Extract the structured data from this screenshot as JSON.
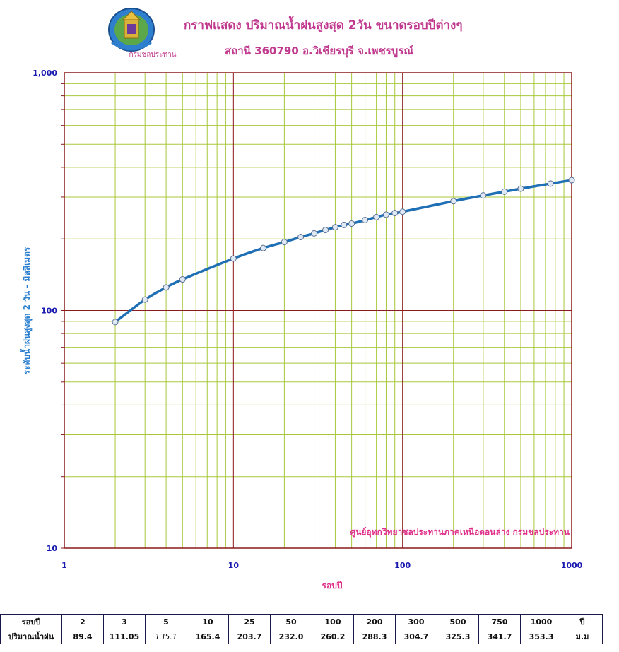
{
  "header": {
    "title": "กราฟแสดง ปริมาณน้ำฝนสูงสุด 2วัน ขนาดรอบปีต่างๆ",
    "subtitle": "สถานี 360790    อ.วิเชียรบุรี  จ.เพชรบูรณ์",
    "logo_text": "กรมชลประทาน"
  },
  "chart_data": {
    "type": "scatter",
    "x_scale": "log",
    "y_scale": "log",
    "xlim": [
      1,
      1000
    ],
    "ylim": [
      10,
      1000
    ],
    "xlabel": "รอบปี",
    "ylabel": "ระดับน้ำฝนสูงสุด 2 วัน  -  มิลลิเมตร",
    "x_tick_labels": [
      "1",
      "10",
      "100",
      "1000"
    ],
    "y_tick_labels": [
      "10",
      "100",
      "1,000"
    ],
    "annotation": "ศูนย์อุทกวิทยาชลประทานภาคเหนือตอนล่าง  กรมชลประทาน",
    "grid": true,
    "points_x": [
      2,
      3,
      4,
      5,
      10,
      15,
      20,
      25,
      30,
      35,
      40,
      45,
      50,
      60,
      70,
      80,
      90,
      100,
      200,
      300,
      400,
      500,
      750,
      1000
    ],
    "points_y": [
      89.4,
      111.05,
      125,
      135.1,
      165.4,
      183,
      194,
      203.7,
      211,
      218,
      224,
      229,
      232.0,
      240,
      247,
      253,
      257,
      260.2,
      288.3,
      304.7,
      316,
      325.3,
      341.7,
      353.3
    ],
    "colors": {
      "curve": "#1f6fb5",
      "major_grid": "#8b1a1a",
      "minor_grid": "#a8c83a",
      "marker_fill": "#dfe8f5",
      "marker_stroke": "#5a6f90",
      "tick_label": "#1a1ab0",
      "ylabel": "#2b7fd0",
      "annotation": "#e0308a"
    }
  },
  "table": {
    "row1_label": "รอบปี",
    "row2_label": "ปริมาณน้ำฝน",
    "periods": [
      "2",
      "3",
      "5",
      "10",
      "25",
      "50",
      "100",
      "200",
      "300",
      "500",
      "750",
      "1000"
    ],
    "values": [
      "89.4",
      "111.05",
      "135.1",
      "165.4",
      "203.7",
      "232.0",
      "260.2",
      "288.3",
      "304.7",
      "325.3",
      "341.7",
      "353.3"
    ],
    "unit_row1": "ปี",
    "unit_row2": "ม.ม"
  }
}
